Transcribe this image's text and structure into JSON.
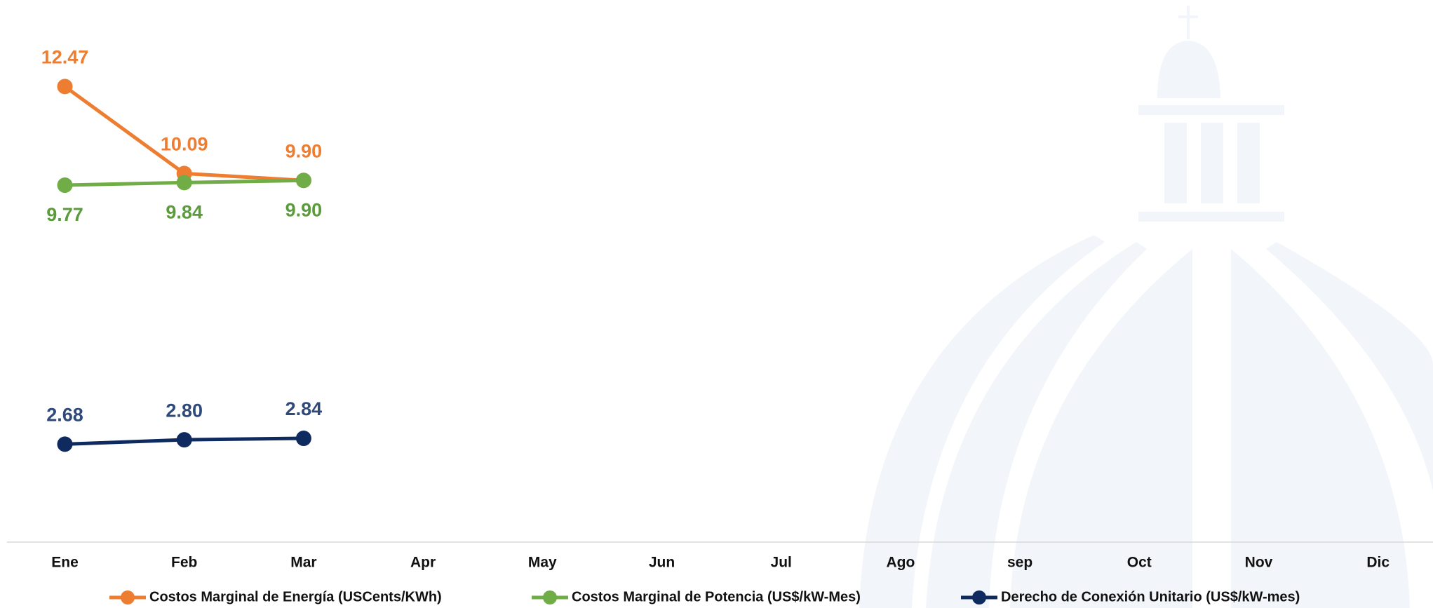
{
  "chart_data": {
    "type": "line",
    "categories": [
      "Ene",
      "Feb",
      "Mar",
      "Apr",
      "May",
      "Jun",
      "Jul",
      "Ago",
      "sep",
      "Oct",
      "Nov",
      "Dic"
    ],
    "series": [
      {
        "name": "Costos Marginal de Energía (USCents/KWh)",
        "color": "#ED7D31",
        "values": [
          12.47,
          10.09,
          9.9,
          null,
          null,
          null,
          null,
          null,
          null,
          null,
          null,
          null
        ],
        "value_labels": [
          "12.47",
          "10.09",
          "9.90",
          null,
          null,
          null,
          null,
          null,
          null,
          null,
          null,
          null
        ]
      },
      {
        "name": "Costos Marginal de Potencia  (US$/kW-Mes)",
        "color": "#70AD47",
        "values": [
          9.77,
          9.84,
          9.9,
          null,
          null,
          null,
          null,
          null,
          null,
          null,
          null,
          null
        ],
        "value_labels": [
          "9.77",
          "9.84",
          "9.90",
          null,
          null,
          null,
          null,
          null,
          null,
          null,
          null,
          null
        ]
      },
      {
        "name": "Derecho de Conexión Unitario (US$/kW-mes)",
        "color": "#0E2A5E",
        "values": [
          2.68,
          2.8,
          2.84,
          null,
          null,
          null,
          null,
          null,
          null,
          null,
          null,
          null
        ],
        "value_labels": [
          "2.68",
          "2.80",
          "2.84",
          null,
          null,
          null,
          null,
          null,
          null,
          null,
          null,
          null
        ]
      }
    ],
    "ylim": [
      0,
      14.8
    ]
  }
}
